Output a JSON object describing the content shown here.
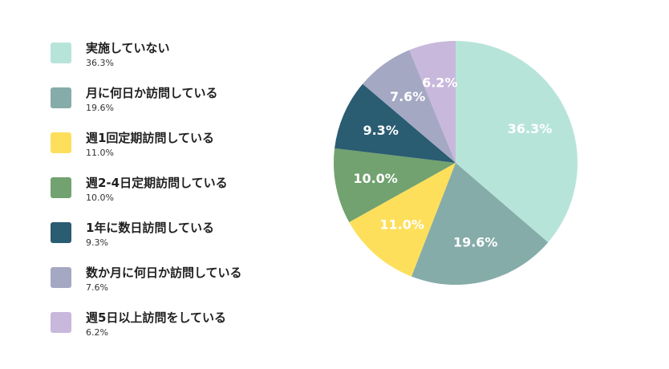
{
  "chart_data": {
    "type": "pie",
    "legend_placement": "left",
    "slices": [
      {
        "label": "実施していない",
        "value": 36.3,
        "value_text": "36.3%",
        "color": "#b7e4d9"
      },
      {
        "label": "月に何日か訪問している",
        "value": 19.6,
        "value_text": "19.6%",
        "color": "#85aca9"
      },
      {
        "label": "週1回定期訪問している",
        "value": 11.0,
        "value_text": "11.0%",
        "color": "#fddf5c"
      },
      {
        "label": "週2-4日定期訪問している",
        "value": 10.0,
        "value_text": "10.0%",
        "color": "#72a26f"
      },
      {
        "label": "1年に数日訪問している",
        "value": 9.3,
        "value_text": "9.3%",
        "color": "#2a5c72"
      },
      {
        "label": "数か月に何日か訪問している",
        "value": 7.6,
        "value_text": "7.6%",
        "color": "#a4a8c3"
      },
      {
        "label": "週5日以上訪問をしている",
        "value": 6.2,
        "value_text": "6.2%",
        "color": "#c8b8dc"
      }
    ]
  }
}
